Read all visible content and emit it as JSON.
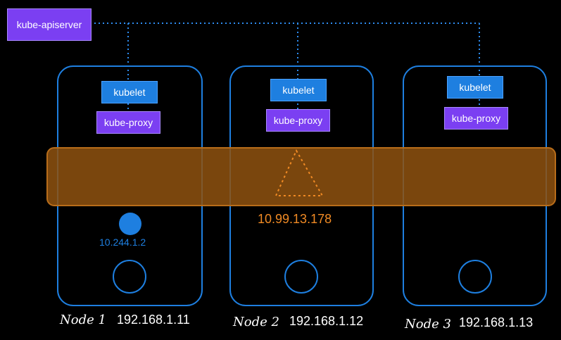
{
  "apiserver": {
    "label": "kube-apiserver"
  },
  "nodes": [
    {
      "name": "Node 1",
      "ip": "192.168.1.11",
      "kubelet": "kubelet",
      "proxy": "kube-proxy"
    },
    {
      "name": "Node 2",
      "ip": "192.168.1.12",
      "kubelet": "kubelet",
      "proxy": "kube-proxy"
    },
    {
      "name": "Node 3",
      "ip": "192.168.1.13",
      "kubelet": "kubelet",
      "proxy": "kube-proxy"
    }
  ],
  "pod": {
    "ip": "10.244.1.2"
  },
  "service": {
    "ip": "10.99.13.178"
  },
  "colors": {
    "node_border": "#1e7fe0",
    "kubelet": "#1e7fe0",
    "proxy": "#7b3ff2",
    "band": "#9a5a13",
    "service": "#f08a24",
    "pod": "#1e7fe0"
  }
}
